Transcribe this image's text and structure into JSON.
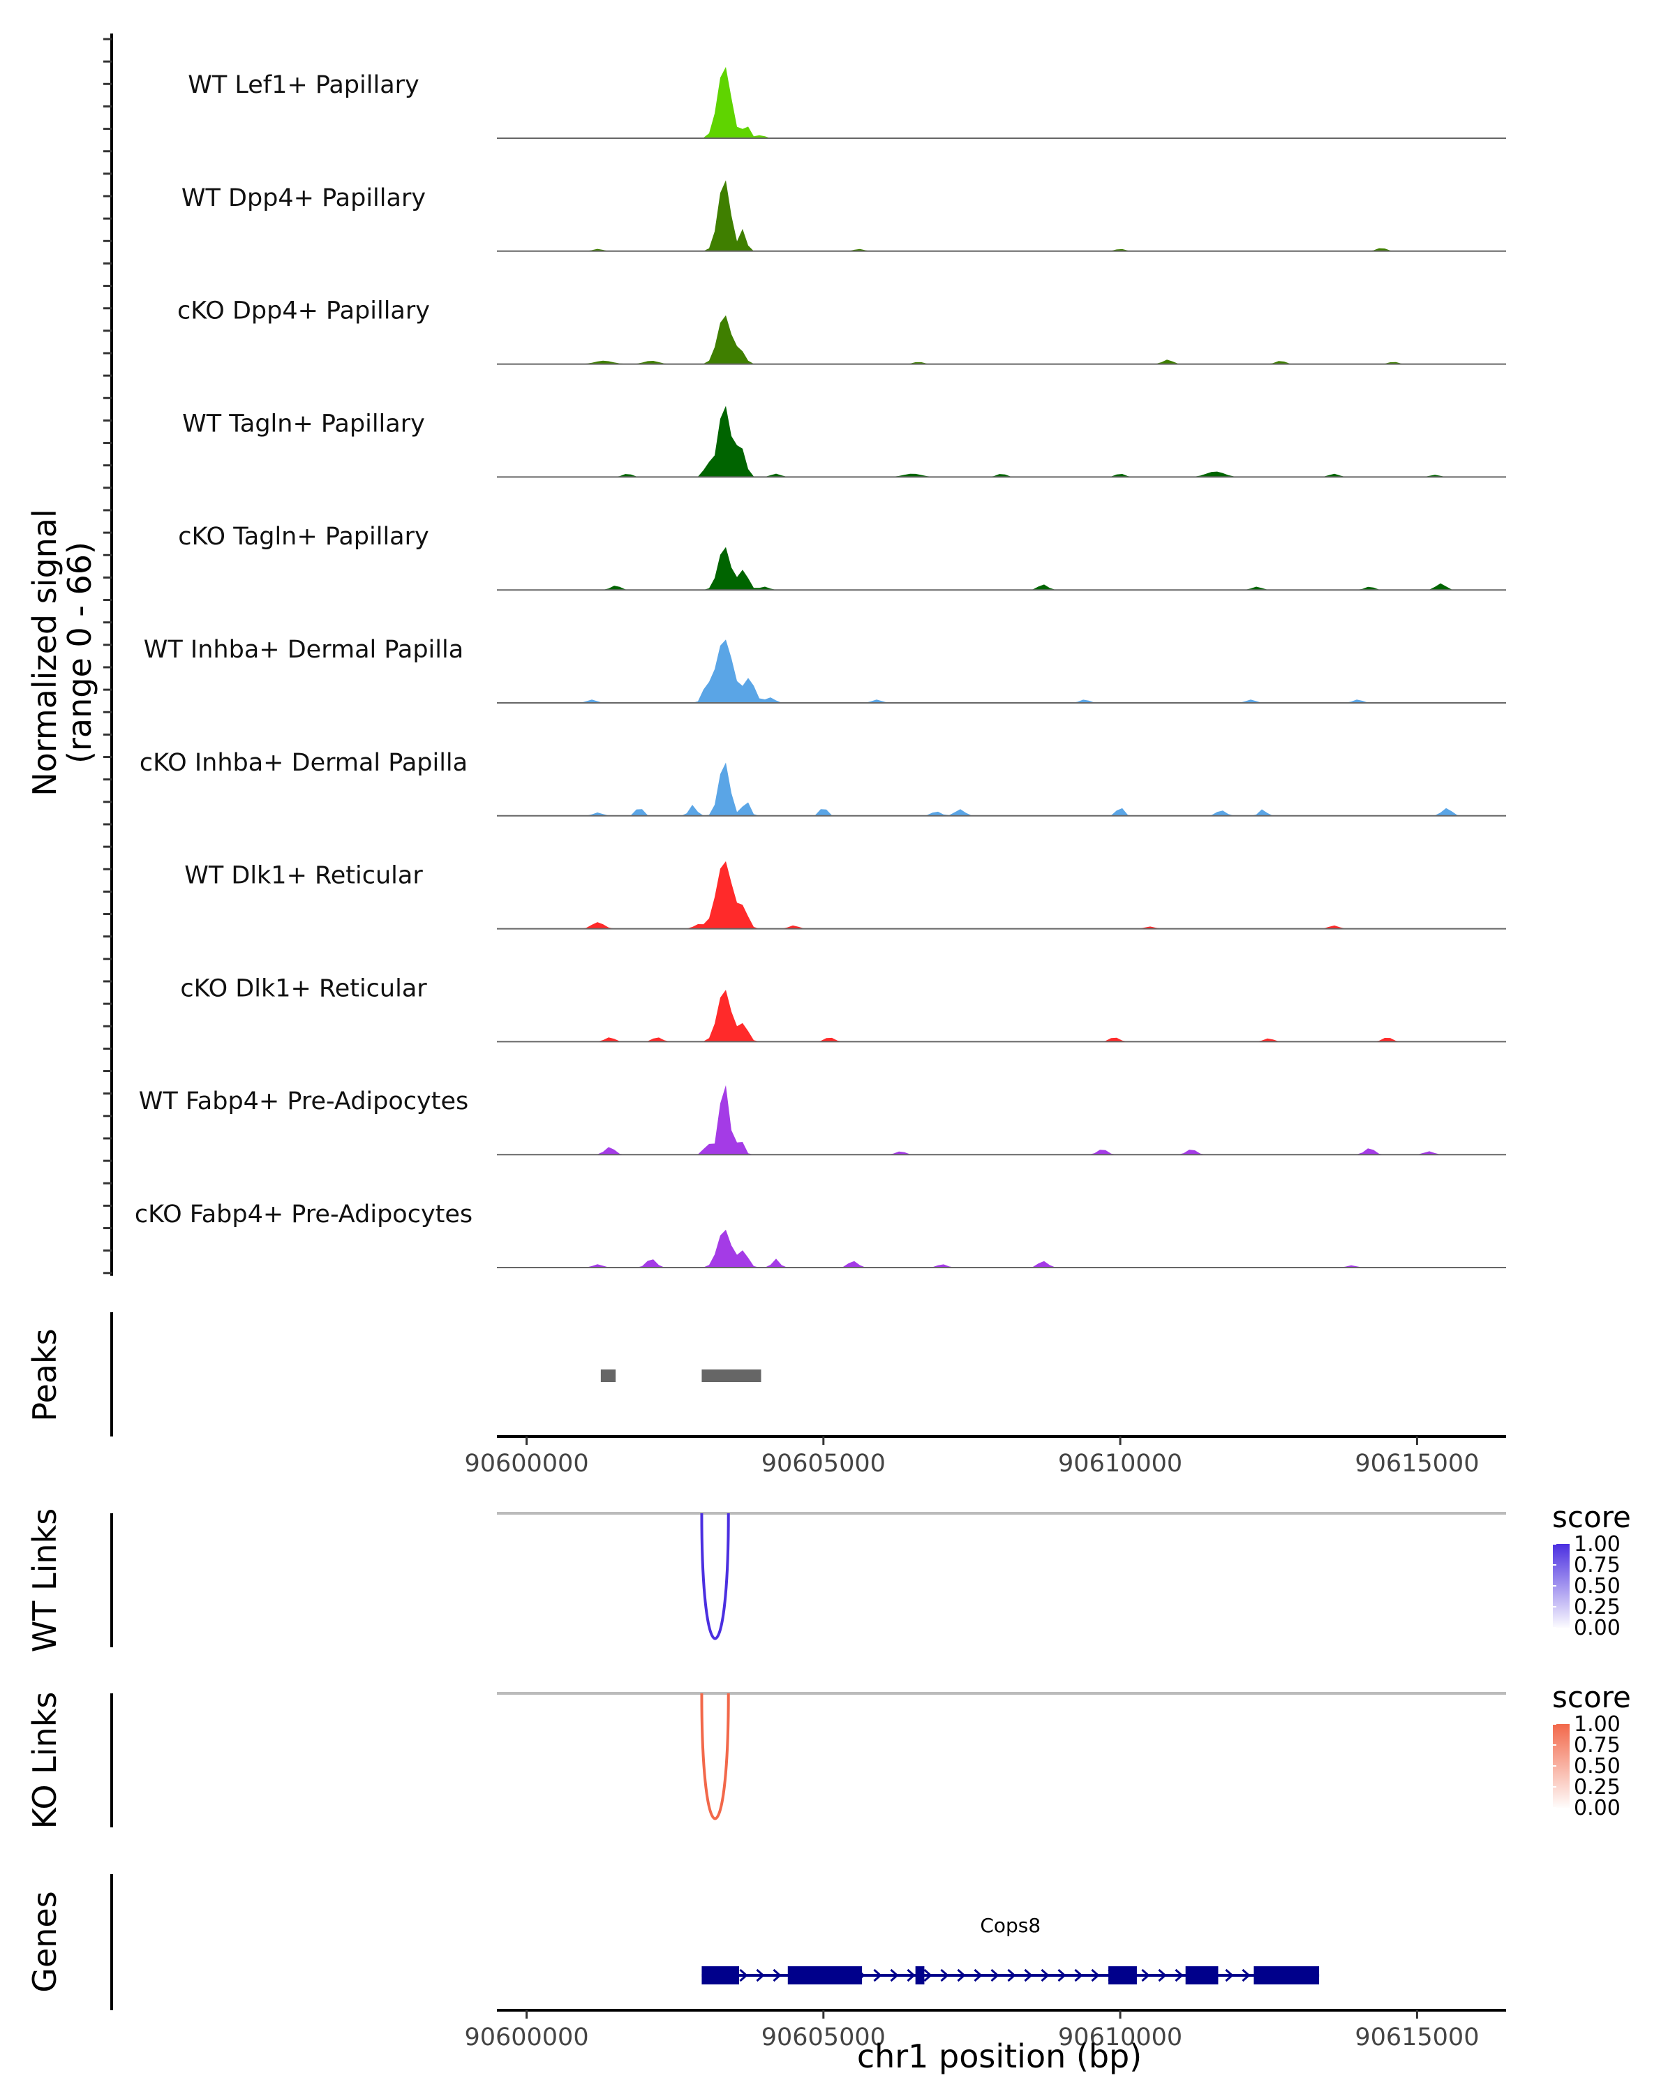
{
  "chart_data": {
    "type": "area",
    "title": "",
    "xlabel": "chr1 position (bp)",
    "x_range": [
      90599500,
      90616500
    ],
    "x_ticks": [
      90600000,
      90605000,
      90610000,
      90615000
    ],
    "x_tick_labels": [
      "90600000",
      "90605000",
      "90610000",
      "90615000"
    ],
    "coverage": {
      "ylabel_line1": "Normalized signal",
      "ylabel_line2": "(range 0 - 66)",
      "y_range": [
        0,
        66
      ],
      "tracks": [
        {
          "name": "WT Lef1+ Papillary",
          "color": "#5FD400",
          "peaks": [
            [
              90603330,
              66,
              110
            ],
            [
              90603700,
              12,
              60
            ],
            [
              90603950,
              3,
              60
            ]
          ]
        },
        {
          "name": "WT Dpp4+ Papillary",
          "color": "#3F7F00",
          "peaks": [
            [
              90603330,
              66,
              100
            ],
            [
              90603650,
              20,
              50
            ],
            [
              90601200,
              2,
              80
            ],
            [
              90605600,
              2,
              80
            ],
            [
              90610000,
              2,
              80
            ],
            [
              90614400,
              3,
              80
            ]
          ]
        },
        {
          "name": "cKO Dpp4+ Papillary",
          "color": "#3F7F00",
          "peaks": [
            [
              90603330,
              45,
              110
            ],
            [
              90603600,
              12,
              80
            ],
            [
              90601300,
              3,
              150
            ],
            [
              90602100,
              3,
              120
            ],
            [
              90606600,
              2,
              80
            ],
            [
              90610800,
              4,
              80
            ],
            [
              90612700,
              3,
              80
            ],
            [
              90614600,
              2,
              80
            ]
          ]
        },
        {
          "name": "WT Tagln+ Papillary",
          "color": "#006400",
          "peaks": [
            [
              90603330,
              66,
              100
            ],
            [
              90603600,
              28,
              80
            ],
            [
              90603050,
              12,
              60
            ],
            [
              90601700,
              3,
              80
            ],
            [
              90604200,
              3,
              80
            ],
            [
              90606500,
              3,
              150
            ],
            [
              90608000,
              3,
              80
            ],
            [
              90610000,
              3,
              80
            ],
            [
              90611600,
              5,
              150
            ],
            [
              90613600,
              3,
              80
            ],
            [
              90615300,
              2,
              80
            ]
          ]
        },
        {
          "name": "cKO Tagln+ Papillary",
          "color": "#006400",
          "peaks": [
            [
              90603330,
              40,
              100
            ],
            [
              90603650,
              18,
              80
            ],
            [
              90601500,
              4,
              80
            ],
            [
              90604000,
              3,
              80
            ],
            [
              90608700,
              5,
              80
            ],
            [
              90612300,
              3,
              80
            ],
            [
              90614200,
              3,
              80
            ],
            [
              90615400,
              6,
              80
            ]
          ]
        },
        {
          "name": "WT Inhba+ Dermal Papilla",
          "color": "#5AA5E6",
          "peaks": [
            [
              90603330,
              58,
              140
            ],
            [
              90603750,
              22,
              90
            ],
            [
              90603020,
              12,
              60
            ],
            [
              90604100,
              5,
              80
            ],
            [
              90601100,
              3,
              80
            ],
            [
              90605900,
              3,
              80
            ],
            [
              90609400,
              3,
              80
            ],
            [
              90612200,
              3,
              80
            ],
            [
              90614000,
              3,
              80
            ]
          ]
        },
        {
          "name": "cKO Inhba+ Dermal Papilla",
          "color": "#5AA5E6",
          "peaks": [
            [
              90603330,
              50,
              90
            ],
            [
              90603700,
              14,
              60
            ],
            [
              90602800,
              10,
              60
            ],
            [
              90601200,
              3,
              80
            ],
            [
              90601900,
              8,
              60
            ],
            [
              90605000,
              8,
              60
            ],
            [
              90606900,
              4,
              80
            ],
            [
              90607300,
              6,
              80
            ],
            [
              90610000,
              8,
              60
            ],
            [
              90611700,
              5,
              80
            ],
            [
              90612400,
              6,
              60
            ],
            [
              90615500,
              7,
              80
            ]
          ]
        },
        {
          "name": "WT Dlk1+ Reticular",
          "color": "#FF2A2A",
          "peaks": [
            [
              90603330,
              62,
              130
            ],
            [
              90603650,
              18,
              80
            ],
            [
              90601200,
              6,
              100
            ],
            [
              90602900,
              4,
              80
            ],
            [
              90604500,
              3,
              80
            ],
            [
              90610500,
              2,
              80
            ],
            [
              90613600,
              3,
              80
            ]
          ]
        },
        {
          "name": "cKO Dlk1+ Reticular",
          "color": "#FF2A2A",
          "peaks": [
            [
              90603330,
              48,
              110
            ],
            [
              90603650,
              16,
              80
            ],
            [
              90601400,
              4,
              80
            ],
            [
              90602200,
              4,
              80
            ],
            [
              90605100,
              4,
              80
            ],
            [
              90609900,
              4,
              80
            ],
            [
              90612500,
              3,
              80
            ],
            [
              90614500,
              4,
              80
            ]
          ]
        },
        {
          "name": "WT Fabp4+ Pre-Adipocytes",
          "color": "#A43BE6",
          "peaks": [
            [
              90603330,
              66,
              80
            ],
            [
              90603600,
              14,
              60
            ],
            [
              90603050,
              10,
              60
            ],
            [
              90601400,
              7,
              80
            ],
            [
              90606300,
              3,
              80
            ],
            [
              90609700,
              5,
              80
            ],
            [
              90611200,
              5,
              80
            ],
            [
              90614200,
              6,
              80
            ],
            [
              90615200,
              3,
              80
            ]
          ]
        },
        {
          "name": "cKO Fabp4+ Pre-Adipocytes",
          "color": "#A43BE6",
          "peaks": [
            [
              90603330,
              35,
              110
            ],
            [
              90603650,
              15,
              80
            ],
            [
              90604200,
              8,
              60
            ],
            [
              90602100,
              8,
              80
            ],
            [
              90601200,
              3,
              80
            ],
            [
              90605500,
              6,
              80
            ],
            [
              90607000,
              3,
              80
            ],
            [
              90608700,
              6,
              80
            ],
            [
              90613900,
              2,
              80
            ]
          ]
        }
      ]
    },
    "peaks_track": {
      "label": "Peaks",
      "regions": [
        [
          90601250,
          90601500
        ],
        [
          90602950,
          90603950
        ]
      ]
    },
    "links_tracks": [
      {
        "label": "WT Links",
        "color": "#4B2FE0",
        "legend_title": "score",
        "legend_ticks": [
          "1.00",
          "0.75",
          "0.50",
          "0.25",
          "0.00"
        ],
        "link": {
          "start": 90602950,
          "end": 90603400,
          "score": 0.95
        }
      },
      {
        "label": "KO Links",
        "color": "#F2684A",
        "legend_title": "score",
        "legend_ticks": [
          "1.00",
          "0.75",
          "0.50",
          "0.25",
          "0.00"
        ],
        "link": {
          "start": 90602950,
          "end": 90603400,
          "score": 0.7
        }
      }
    ],
    "genes_track": {
      "label": "Genes",
      "gene_name": "Cops8",
      "gene_start": 90602950,
      "gene_end": 90613350,
      "strand": "+",
      "exons": [
        [
          90602950,
          90603580
        ],
        [
          90604400,
          90605650
        ],
        [
          90606550,
          90606700
        ],
        [
          90609800,
          90610280
        ],
        [
          90611100,
          90611650
        ],
        [
          90612250,
          90613350
        ]
      ]
    }
  }
}
